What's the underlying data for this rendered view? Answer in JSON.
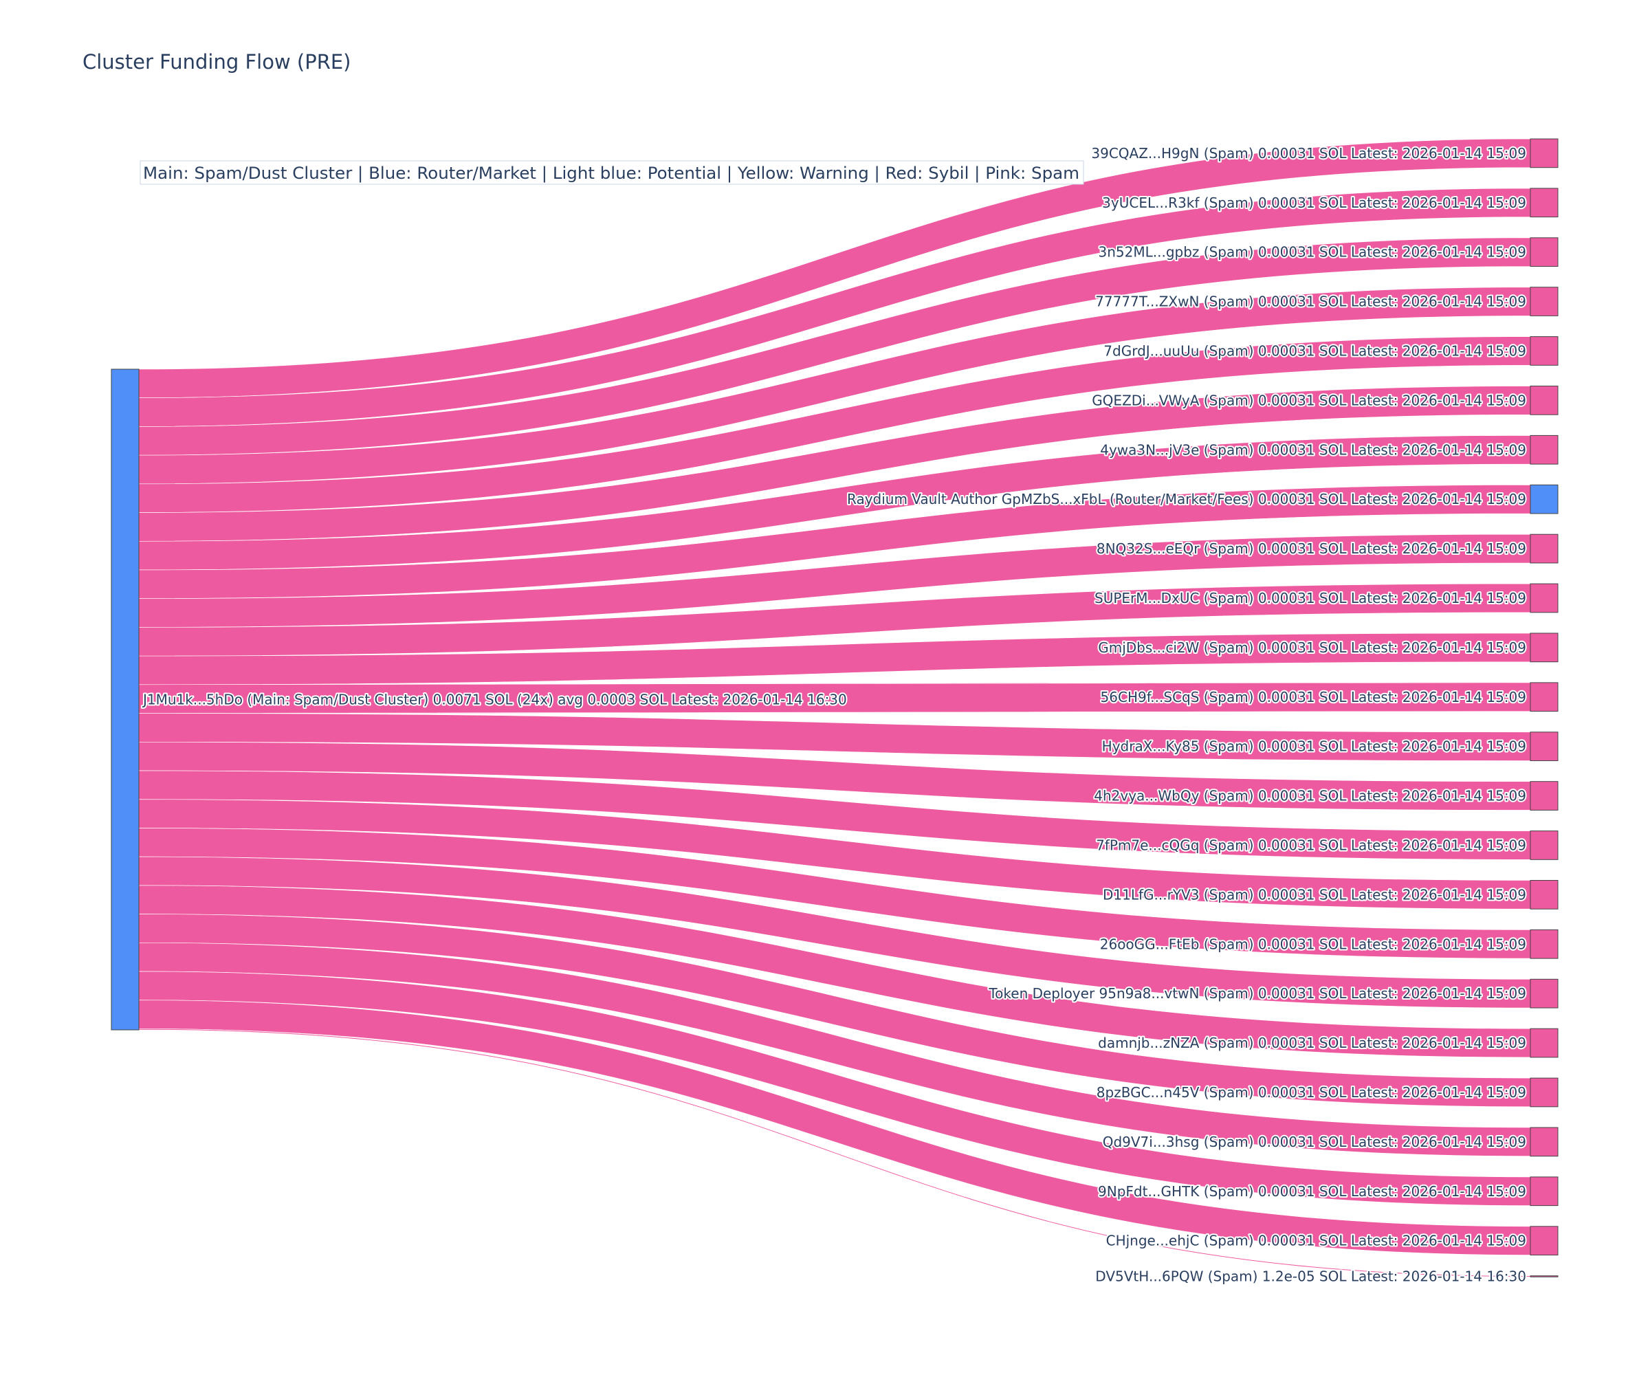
{
  "chart_data": {
    "type": "sankey",
    "title": "Cluster Funding Flow (PRE)",
    "legend_note": "Main: Spam/Dust Cluster  |  Blue: Router/Market | Light blue: Potential | Yellow: Warning | Red: Sybil | Pink: Spam",
    "colors": {
      "main_node": "#4f8ff7",
      "router_node": "#4f8ff7",
      "spam_node": "#ee5aa0",
      "link": "#ee5aa0"
    },
    "source": {
      "label": "J1Mu1k...5hDo (Main: Spam/Dust Cluster) 0.0071 SOL (24x) avg 0.0003 SOL Latest: 2026-01-14 16:30",
      "category": "main"
    },
    "targets": [
      {
        "label": "39CQAZ...H9gN (Spam) 0.00031 SOL Latest: 2026-01-14 15:09",
        "value": 0.00031,
        "category": "spam"
      },
      {
        "label": "3yUCEL...R3kf (Spam) 0.00031 SOL Latest: 2026-01-14 15:09",
        "value": 0.00031,
        "category": "spam"
      },
      {
        "label": "3n52ML...gpbz (Spam) 0.00031 SOL Latest: 2026-01-14 15:09",
        "value": 0.00031,
        "category": "spam"
      },
      {
        "label": "77777T...ZXwN (Spam) 0.00031 SOL Latest: 2026-01-14 15:09",
        "value": 0.00031,
        "category": "spam"
      },
      {
        "label": "7dGrdJ...uuUu (Spam) 0.00031 SOL Latest: 2026-01-14 15:09",
        "value": 0.00031,
        "category": "spam"
      },
      {
        "label": "GQEZDi...VWyA (Spam) 0.00031 SOL Latest: 2026-01-14 15:09",
        "value": 0.00031,
        "category": "spam"
      },
      {
        "label": "4ywa3N...jV3e (Spam) 0.00031 SOL Latest: 2026-01-14 15:09",
        "value": 0.00031,
        "category": "spam"
      },
      {
        "label": "Raydium Vault Author GpMZbS...xFbL (Router/Market/Fees) 0.00031 SOL Latest: 2026-01-14 15:09",
        "value": 0.00031,
        "category": "router"
      },
      {
        "label": "8NQ32S...eEQr (Spam) 0.00031 SOL Latest: 2026-01-14 15:09",
        "value": 0.00031,
        "category": "spam"
      },
      {
        "label": "SUPErM...DxUC (Spam) 0.00031 SOL Latest: 2026-01-14 15:09",
        "value": 0.00031,
        "category": "spam"
      },
      {
        "label": "GmjDbs...ci2W (Spam) 0.00031 SOL Latest: 2026-01-14 15:09",
        "value": 0.00031,
        "category": "spam"
      },
      {
        "label": "56CH9f...SCqS (Spam) 0.00031 SOL Latest: 2026-01-14 15:09",
        "value": 0.00031,
        "category": "spam"
      },
      {
        "label": "HydraX...Ky85 (Spam) 0.00031 SOL Latest: 2026-01-14 15:09",
        "value": 0.00031,
        "category": "spam"
      },
      {
        "label": "4h2vya...WbQy (Spam) 0.00031 SOL Latest: 2026-01-14 15:09",
        "value": 0.00031,
        "category": "spam"
      },
      {
        "label": "7fPm7e...cQGq (Spam) 0.00031 SOL Latest: 2026-01-14 15:09",
        "value": 0.00031,
        "category": "spam"
      },
      {
        "label": "D11LfG...rYV3 (Spam) 0.00031 SOL Latest: 2026-01-14 15:09",
        "value": 0.00031,
        "category": "spam"
      },
      {
        "label": "26ooGG...FtEb (Spam) 0.00031 SOL Latest: 2026-01-14 15:09",
        "value": 0.00031,
        "category": "spam"
      },
      {
        "label": "Token Deployer 95n9a8...vtwN (Spam) 0.00031 SOL Latest: 2026-01-14 15:09",
        "value": 0.00031,
        "category": "spam"
      },
      {
        "label": "damnjb...zNZA (Spam) 0.00031 SOL Latest: 2026-01-14 15:09",
        "value": 0.00031,
        "category": "spam"
      },
      {
        "label": "8pzBGC...n45V (Spam) 0.00031 SOL Latest: 2026-01-14 15:09",
        "value": 0.00031,
        "category": "spam"
      },
      {
        "label": "Qd9V7i...3hsg (Spam) 0.00031 SOL Latest: 2026-01-14 15:09",
        "value": 0.00031,
        "category": "spam"
      },
      {
        "label": "9NpFdt...GHTK (Spam) 0.00031 SOL Latest: 2026-01-14 15:09",
        "value": 0.00031,
        "category": "spam"
      },
      {
        "label": "CHjnge...ehjC (Spam) 0.00031 SOL Latest: 2026-01-14 15:09",
        "value": 0.00031,
        "category": "spam"
      },
      {
        "label": "DV5VtH...6PQW (Spam) 1.2e-05 SOL Latest: 2026-01-14 16:30",
        "value": 1.2e-05,
        "category": "spam"
      }
    ]
  }
}
